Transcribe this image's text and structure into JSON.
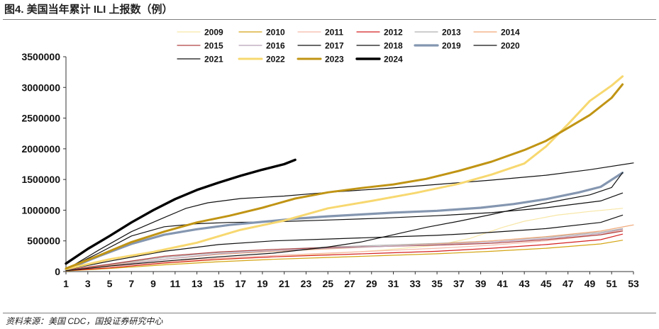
{
  "header": {
    "title": "图4. 美国当年累计 ILI 上报数（例）"
  },
  "footer": {
    "source": "资料来源：美国 CDC，国投证券研究中心"
  },
  "chart_data": {
    "type": "line",
    "title": "",
    "xlabel": "",
    "ylabel": "",
    "xlim": [
      1,
      53
    ],
    "ylim": [
      0,
      3500000
    ],
    "x_ticks": [
      1,
      3,
      5,
      7,
      9,
      11,
      13,
      15,
      17,
      19,
      21,
      23,
      25,
      27,
      29,
      31,
      33,
      35,
      37,
      39,
      41,
      43,
      45,
      47,
      49,
      51,
      53
    ],
    "y_ticks": [
      0,
      500000,
      1000000,
      1500000,
      2000000,
      2500000,
      3000000,
      3500000
    ],
    "grid": false,
    "legend_position": "top",
    "series": [
      {
        "name": "2009",
        "color": "#f7e6a6",
        "width": 1.2,
        "points": [
          [
            1,
            20000
          ],
          [
            5,
            60000
          ],
          [
            10,
            130000
          ],
          [
            15,
            190000
          ],
          [
            20,
            240000
          ],
          [
            25,
            290000
          ],
          [
            30,
            350000
          ],
          [
            35,
            430000
          ],
          [
            38,
            540000
          ],
          [
            41,
            720000
          ],
          [
            43,
            820000
          ],
          [
            46,
            920000
          ],
          [
            49,
            980000
          ],
          [
            52,
            1030000
          ]
        ]
      },
      {
        "name": "2010",
        "color": "#d4a514",
        "width": 1.2,
        "points": [
          [
            1,
            10000
          ],
          [
            5,
            50000
          ],
          [
            10,
            110000
          ],
          [
            15,
            160000
          ],
          [
            20,
            200000
          ],
          [
            25,
            230000
          ],
          [
            30,
            260000
          ],
          [
            35,
            290000
          ],
          [
            40,
            330000
          ],
          [
            45,
            380000
          ],
          [
            50,
            450000
          ],
          [
            52,
            510000
          ]
        ]
      },
      {
        "name": "2011",
        "color": "#f5b8a8",
        "width": 1.2,
        "points": [
          [
            1,
            15000
          ],
          [
            5,
            80000
          ],
          [
            10,
            160000
          ],
          [
            15,
            220000
          ],
          [
            20,
            260000
          ],
          [
            25,
            300000
          ],
          [
            30,
            340000
          ],
          [
            35,
            380000
          ],
          [
            40,
            430000
          ],
          [
            45,
            500000
          ],
          [
            50,
            600000
          ],
          [
            52,
            680000
          ]
        ]
      },
      {
        "name": "2012",
        "color": "#d42020",
        "width": 1.2,
        "points": [
          [
            1,
            15000
          ],
          [
            5,
            60000
          ],
          [
            10,
            140000
          ],
          [
            15,
            200000
          ],
          [
            20,
            240000
          ],
          [
            25,
            270000
          ],
          [
            30,
            300000
          ],
          [
            35,
            330000
          ],
          [
            40,
            380000
          ],
          [
            45,
            440000
          ],
          [
            50,
            520000
          ],
          [
            52,
            610000
          ]
        ]
      },
      {
        "name": "2013",
        "color": "#b0b0b0",
        "width": 1.2,
        "points": [
          [
            1,
            20000
          ],
          [
            5,
            110000
          ],
          [
            10,
            230000
          ],
          [
            15,
            310000
          ],
          [
            20,
            360000
          ],
          [
            25,
            400000
          ],
          [
            30,
            430000
          ],
          [
            35,
            460000
          ],
          [
            40,
            500000
          ],
          [
            45,
            560000
          ],
          [
            50,
            640000
          ],
          [
            52,
            700000
          ]
        ]
      },
      {
        "name": "2014",
        "color": "#f0a878",
        "width": 1.2,
        "points": [
          [
            1,
            20000
          ],
          [
            5,
            100000
          ],
          [
            10,
            200000
          ],
          [
            15,
            280000
          ],
          [
            20,
            330000
          ],
          [
            25,
            370000
          ],
          [
            30,
            410000
          ],
          [
            35,
            450000
          ],
          [
            40,
            500000
          ],
          [
            45,
            570000
          ],
          [
            50,
            660000
          ],
          [
            53,
            760000
          ]
        ]
      },
      {
        "name": "2015",
        "color": "#b04040",
        "width": 1.2,
        "points": [
          [
            1,
            25000
          ],
          [
            5,
            120000
          ],
          [
            10,
            250000
          ],
          [
            15,
            320000
          ],
          [
            20,
            360000
          ],
          [
            25,
            390000
          ],
          [
            30,
            410000
          ],
          [
            35,
            430000
          ],
          [
            40,
            460000
          ],
          [
            45,
            520000
          ],
          [
            50,
            600000
          ],
          [
            52,
            660000
          ]
        ]
      },
      {
        "name": "2016",
        "color": "#b8a0b8",
        "width": 1.2,
        "points": [
          [
            1,
            20000
          ],
          [
            5,
            90000
          ],
          [
            10,
            200000
          ],
          [
            15,
            290000
          ],
          [
            20,
            340000
          ],
          [
            25,
            380000
          ],
          [
            30,
            410000
          ],
          [
            35,
            440000
          ],
          [
            40,
            480000
          ],
          [
            45,
            540000
          ],
          [
            50,
            620000
          ],
          [
            52,
            690000
          ]
        ]
      },
      {
        "name": "2017",
        "color": "#111111",
        "width": 1.2,
        "points": [
          [
            1,
            30000
          ],
          [
            5,
            170000
          ],
          [
            10,
            330000
          ],
          [
            15,
            440000
          ],
          [
            20,
            500000
          ],
          [
            25,
            530000
          ],
          [
            30,
            560000
          ],
          [
            35,
            590000
          ],
          [
            40,
            640000
          ],
          [
            45,
            700000
          ],
          [
            50,
            800000
          ],
          [
            52,
            920000
          ]
        ]
      },
      {
        "name": "2018",
        "color": "#111111",
        "width": 1.2,
        "points": [
          [
            1,
            40000
          ],
          [
            4,
            300000
          ],
          [
            7,
            580000
          ],
          [
            10,
            730000
          ],
          [
            13,
            780000
          ],
          [
            16,
            800000
          ],
          [
            20,
            810000
          ],
          [
            25,
            840000
          ],
          [
            30,
            870000
          ],
          [
            35,
            910000
          ],
          [
            40,
            960000
          ],
          [
            45,
            1040000
          ],
          [
            50,
            1150000
          ],
          [
            52,
            1280000
          ]
        ]
      },
      {
        "name": "2019",
        "color": "#8496b0",
        "width": 3.2,
        "points": [
          [
            1,
            30000
          ],
          [
            4,
            250000
          ],
          [
            7,
            450000
          ],
          [
            10,
            600000
          ],
          [
            13,
            690000
          ],
          [
            16,
            760000
          ],
          [
            19,
            810000
          ],
          [
            22,
            860000
          ],
          [
            25,
            900000
          ],
          [
            28,
            930000
          ],
          [
            31,
            960000
          ],
          [
            35,
            990000
          ],
          [
            39,
            1040000
          ],
          [
            42,
            1100000
          ],
          [
            45,
            1180000
          ],
          [
            48,
            1290000
          ],
          [
            50,
            1380000
          ],
          [
            52,
            1610000
          ]
        ]
      },
      {
        "name": "2020",
        "color": "#111111",
        "width": 1.2,
        "points": [
          [
            1,
            15000
          ],
          [
            5,
            90000
          ],
          [
            10,
            170000
          ],
          [
            15,
            240000
          ],
          [
            20,
            300000
          ],
          [
            25,
            400000
          ],
          [
            28,
            480000
          ],
          [
            31,
            600000
          ],
          [
            34,
            720000
          ],
          [
            37,
            820000
          ],
          [
            40,
            930000
          ],
          [
            43,
            1050000
          ],
          [
            46,
            1150000
          ],
          [
            49,
            1250000
          ],
          [
            51,
            1370000
          ],
          [
            52,
            1610000
          ]
        ]
      },
      {
        "name": "2021",
        "color": "#111111",
        "width": 1.2,
        "points": [
          [
            1,
            30000
          ],
          [
            4,
            350000
          ],
          [
            7,
            650000
          ],
          [
            10,
            880000
          ],
          [
            12,
            1030000
          ],
          [
            14,
            1120000
          ],
          [
            17,
            1190000
          ],
          [
            21,
            1230000
          ],
          [
            25,
            1290000
          ],
          [
            30,
            1350000
          ],
          [
            35,
            1420000
          ],
          [
            40,
            1490000
          ],
          [
            45,
            1570000
          ],
          [
            49,
            1660000
          ],
          [
            53,
            1770000
          ]
        ]
      },
      {
        "name": "2022",
        "color": "#f7d870",
        "width": 3.0,
        "points": [
          [
            1,
            40000
          ],
          [
            5,
            200000
          ],
          [
            9,
            320000
          ],
          [
            13,
            470000
          ],
          [
            17,
            680000
          ],
          [
            21,
            830000
          ],
          [
            25,
            1030000
          ],
          [
            29,
            1150000
          ],
          [
            33,
            1280000
          ],
          [
            37,
            1430000
          ],
          [
            40,
            1580000
          ],
          [
            43,
            1760000
          ],
          [
            45,
            2040000
          ],
          [
            47,
            2400000
          ],
          [
            49,
            2780000
          ],
          [
            51,
            3030000
          ],
          [
            52,
            3180000
          ]
        ]
      },
      {
        "name": "2023",
        "color": "#c09414",
        "width": 3.0,
        "points": [
          [
            1,
            50000
          ],
          [
            4,
            260000
          ],
          [
            7,
            480000
          ],
          [
            10,
            650000
          ],
          [
            13,
            800000
          ],
          [
            16,
            910000
          ],
          [
            19,
            1040000
          ],
          [
            22,
            1190000
          ],
          [
            25,
            1290000
          ],
          [
            28,
            1360000
          ],
          [
            31,
            1420000
          ],
          [
            34,
            1510000
          ],
          [
            37,
            1640000
          ],
          [
            40,
            1790000
          ],
          [
            43,
            1980000
          ],
          [
            45,
            2130000
          ],
          [
            47,
            2340000
          ],
          [
            49,
            2550000
          ],
          [
            51,
            2830000
          ],
          [
            52,
            3050000
          ]
        ]
      },
      {
        "name": "2024",
        "color": "#000000",
        "width": 3.4,
        "points": [
          [
            1,
            130000
          ],
          [
            3,
            370000
          ],
          [
            5,
            580000
          ],
          [
            7,
            800000
          ],
          [
            9,
            1000000
          ],
          [
            11,
            1180000
          ],
          [
            13,
            1330000
          ],
          [
            15,
            1450000
          ],
          [
            17,
            1560000
          ],
          [
            19,
            1660000
          ],
          [
            21,
            1750000
          ],
          [
            22,
            1820000
          ]
        ]
      }
    ]
  }
}
